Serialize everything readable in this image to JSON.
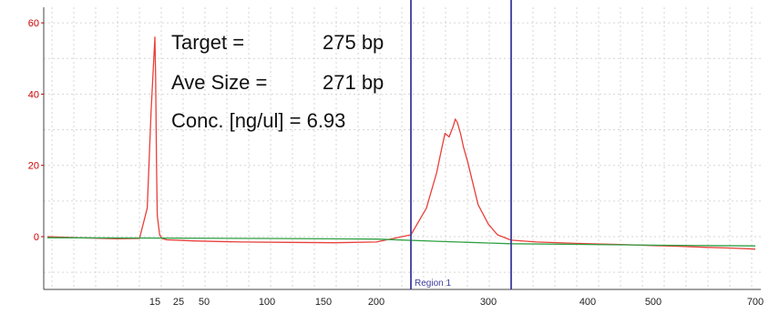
{
  "chart_data": {
    "type": "line",
    "xlabel": "",
    "ylabel": "",
    "x_ticks": [
      15,
      25,
      50,
      100,
      150,
      200,
      300,
      400,
      500,
      700
    ],
    "y_ticks": [
      0,
      20,
      40,
      60
    ],
    "ylim": [
      -14,
      63
    ],
    "grid": true,
    "axis_color": "#cc0000",
    "series": [
      {
        "color": "#e8403a",
        "x": [
          1,
          5,
          10,
          13,
          14,
          14.5,
          15,
          15.3,
          15.7,
          16,
          17,
          18,
          20,
          40,
          80,
          120,
          160,
          200,
          225,
          240,
          250,
          255,
          258,
          262,
          266,
          268,
          270,
          273,
          276,
          280,
          285,
          290,
          300,
          310,
          325,
          350,
          400,
          450,
          500,
          550,
          600,
          650,
          700
        ],
        "y": [
          0,
          -0.3,
          -0.6,
          -0.5,
          8,
          35,
          56,
          45,
          20,
          6,
          0.5,
          -0.5,
          -0.9,
          -1.2,
          -1.5,
          -1.6,
          -1.7,
          -1.5,
          0.5,
          8,
          18,
          25,
          29,
          28,
          31,
          33,
          32,
          29,
          25,
          21,
          15,
          9,
          3.5,
          0.5,
          -1,
          -1.5,
          -2,
          -2.2,
          -2.5,
          -2.7,
          -3,
          -3.2,
          -3.5
        ]
      },
      {
        "color": "#2ea043",
        "x": [
          1,
          100,
          200,
          250,
          300,
          325,
          400,
          500,
          600,
          700
        ],
        "y": [
          -0.3,
          -0.5,
          -0.7,
          -1.3,
          -1.8,
          -2,
          -2.2,
          -2.4,
          -2.5,
          -2.6
        ]
      }
    ],
    "markers": [
      {
        "x": 225,
        "color": "#3d3d9e"
      },
      {
        "x": 325,
        "color": "#3d3d9e"
      }
    ],
    "region_label": "Region 1",
    "annotations": {
      "target_label": "Target =",
      "target_value": "275 bp",
      "ave_label": "Ave Size =",
      "ave_value": "271 bp",
      "conc": "Conc. [ng/ul] = 6.93"
    }
  }
}
